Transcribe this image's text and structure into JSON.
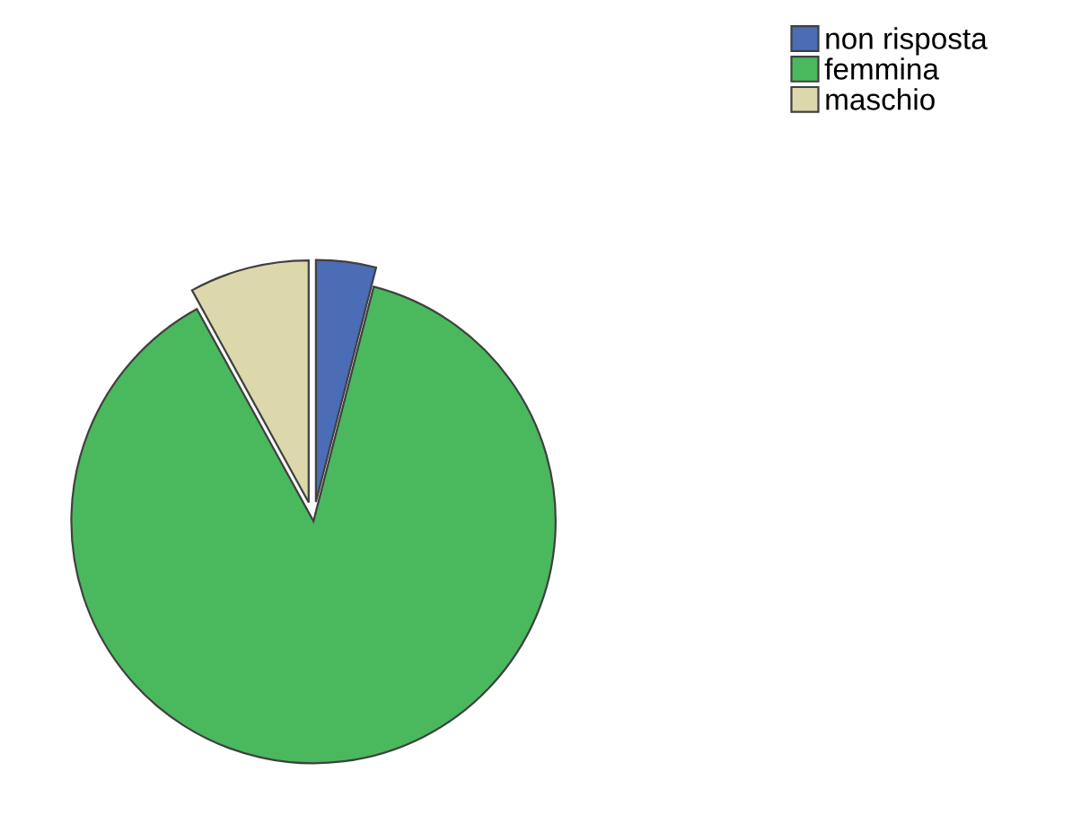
{
  "chart_data": {
    "type": "pie",
    "categories": [
      "non risposta",
      "femmina",
      "maschio"
    ],
    "values": [
      4,
      88,
      8
    ],
    "colors": [
      "#4a6db5",
      "#4ab95e",
      "#ddd8ac"
    ],
    "legend": "top right"
  }
}
